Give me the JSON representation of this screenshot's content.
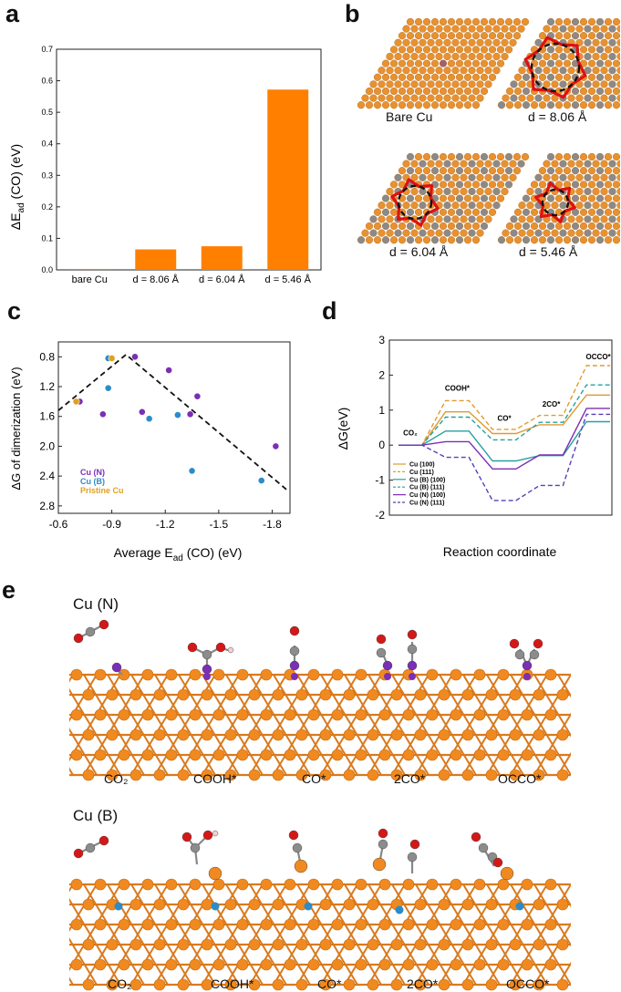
{
  "panel_letters": {
    "a": "a",
    "b": "b",
    "c": "c",
    "d": "d",
    "e": "e"
  },
  "panel_b": {
    "labels": [
      "Bare Cu",
      "d = 8.06 Å",
      "d = 6.04 Å",
      "d = 5.46 Å"
    ]
  },
  "panel_e": {
    "row1_title": "Cu (N)",
    "row2_title": "Cu (B)",
    "steps": [
      "CO₂",
      "COOH*",
      "CO*",
      "2CO*",
      "OCCO*"
    ]
  },
  "colors": {
    "orange": "#FF8000",
    "cu_atom": "#E88A2E",
    "purple": "#7A2FB5",
    "blue": "#2C8CC8",
    "gold": "#E0A020",
    "red_ring": "#E01010"
  },
  "chart_data": [
    {
      "type": "bar",
      "id": "a",
      "categories": [
        "bare Cu",
        "d = 8.06 Å",
        "d = 6.04 Å",
        "d = 5.46 Å"
      ],
      "values": [
        0.003,
        0.065,
        0.075,
        0.572
      ],
      "ylabel": "ΔE_ad (CO) (eV)",
      "ylabel_main": "ΔE",
      "ylabel_sub": "ad",
      "ylabel_rest": " (CO) (eV)",
      "ylim": [
        0,
        0.7
      ],
      "yticks": [
        "0.0",
        "0.1",
        "0.2",
        "0.3",
        "0.4",
        "0.5",
        "0.6",
        "0.7"
      ],
      "color": "#FF8000"
    },
    {
      "type": "scatter",
      "id": "c",
      "xlabel": "Average E_ad (CO) (eV)",
      "xlabel_main": "Average E",
      "xlabel_sub": "ad",
      "xlabel_rest": " (CO) (eV)",
      "ylabel": "ΔG of dimerization (eV)",
      "xlim": [
        -0.6,
        -1.9
      ],
      "ylim": [
        0.6,
        2.9
      ],
      "xticks": [
        "-0.6",
        "-0.9",
        "-1.2",
        "-1.5",
        "-1.8"
      ],
      "yticks": [
        "0.8",
        "1.2",
        "1.6",
        "2.0",
        "2.4",
        "2.8"
      ],
      "series": [
        {
          "name": "Cu (N)",
          "color": "#7A2FB5",
          "points": [
            [
              -0.72,
              1.4
            ],
            [
              -1.03,
              0.8
            ],
            [
              -1.07,
              1.54
            ],
            [
              -1.22,
              0.98
            ],
            [
              -1.34,
              1.57
            ],
            [
              -1.38,
              1.33
            ],
            [
              -1.82,
              2.0
            ],
            [
              -0.85,
              1.57
            ]
          ]
        },
        {
          "name": "Cu (B)",
          "color": "#2C8CC8",
          "points": [
            [
              -0.88,
              0.82
            ],
            [
              -0.88,
              1.22
            ],
            [
              -1.11,
              1.63
            ],
            [
              -1.27,
              1.58
            ],
            [
              -1.35,
              2.33
            ],
            [
              -1.74,
              2.46
            ]
          ]
        },
        {
          "name": "Pristine Cu",
          "color": "#E0A020",
          "points": [
            [
              -0.9,
              0.82
            ],
            [
              -0.7,
              1.4
            ]
          ]
        }
      ],
      "trend_line": [
        [
          -0.6,
          1.52
        ],
        [
          -0.98,
          0.77
        ],
        [
          -1.88,
          2.58
        ]
      ],
      "legend_position": "bottom-left"
    },
    {
      "type": "line",
      "id": "d",
      "xlabel": "Reaction coordinate",
      "ylabel": "ΔG(eV)",
      "ylim": [
        -2,
        3
      ],
      "yticks": [
        "-2",
        "-1",
        "0",
        "1",
        "2",
        "3"
      ],
      "steps": [
        "CO₂",
        "COOH*",
        "CO*",
        "2CO*",
        "OCCO*"
      ],
      "step_labels": [
        "CO₂",
        "COOH*",
        "CO*",
        "2CO*",
        "OCCO*"
      ],
      "series": [
        {
          "name": "Cu (100)",
          "color": "#E09B30",
          "dashed": false,
          "values": [
            0,
            0.95,
            0.33,
            0.58,
            1.43
          ]
        },
        {
          "name": "Cu (111)",
          "color": "#E09B30",
          "dashed": true,
          "values": [
            0,
            1.27,
            0.45,
            0.85,
            2.27
          ]
        },
        {
          "name": "Cu (B) (100)",
          "color": "#27A0A0",
          "dashed": false,
          "values": [
            0,
            0.4,
            -0.45,
            -0.3,
            0.67
          ]
        },
        {
          "name": "Cu (B) (111)",
          "color": "#27A0A0",
          "dashed": true,
          "values": [
            0,
            0.8,
            0.15,
            0.65,
            1.72
          ]
        },
        {
          "name": "Cu (N) (100)",
          "color": "#7A2FB5",
          "dashed": false,
          "values": [
            0,
            0.1,
            -0.68,
            -0.28,
            1.05
          ]
        },
        {
          "name": "Cu (N) (111)",
          "color": "#5A3FB5",
          "dashed": true,
          "values": [
            0,
            -0.35,
            -1.58,
            -1.15,
            0.88
          ]
        }
      ],
      "legend_position": "bottom-left"
    }
  ]
}
